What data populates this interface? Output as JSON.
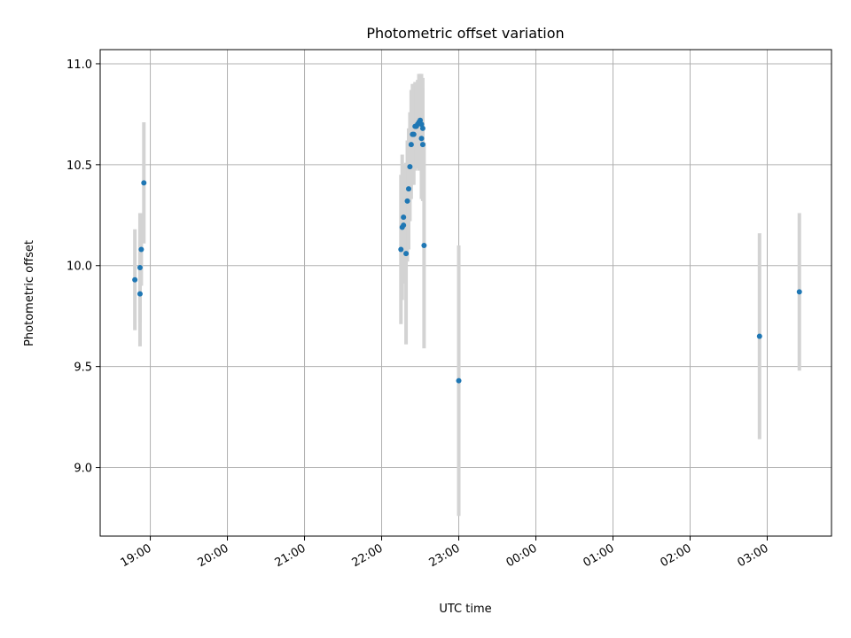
{
  "chart_data": {
    "type": "scatter",
    "title": "Photometric offset variation",
    "xlabel": "UTC time",
    "ylabel": "Photometric offset",
    "x_ticks": [
      "19:00",
      "20:00",
      "21:00",
      "22:00",
      "23:00",
      "00:00",
      "01:00",
      "02:00",
      "03:00"
    ],
    "y_ticks": [
      "9.0",
      "9.5",
      "10.0",
      "10.5",
      "11.0"
    ],
    "xlim": [
      "18:21",
      "03:50"
    ],
    "ylim": [
      8.66,
      11.07
    ],
    "grid": true,
    "point_color": "#1f77b4",
    "errorbar_color": "#d3d3d3",
    "points": [
      {
        "time": "18:48",
        "y": 9.93,
        "err": 0.25
      },
      {
        "time": "18:52",
        "y": 9.86,
        "err": 0.26
      },
      {
        "time": "18:52",
        "y": 9.99,
        "err": 0.27
      },
      {
        "time": "18:53",
        "y": 10.08,
        "err": 0.18
      },
      {
        "time": "18:55",
        "y": 10.41,
        "err": 0.3
      },
      {
        "time": "22:15",
        "y": 10.08,
        "err": 0.37
      },
      {
        "time": "22:16",
        "y": 10.19,
        "err": 0.36
      },
      {
        "time": "22:17",
        "y": 10.2,
        "err": 0.29
      },
      {
        "time": "22:17",
        "y": 10.24,
        "err": 0.26
      },
      {
        "time": "22:19",
        "y": 10.06,
        "err": 0.45
      },
      {
        "time": "22:20",
        "y": 10.32,
        "err": 0.3
      },
      {
        "time": "22:21",
        "y": 10.38,
        "err": 0.3
      },
      {
        "time": "22:22",
        "y": 10.49,
        "err": 0.27
      },
      {
        "time": "22:23",
        "y": 10.6,
        "err": 0.27
      },
      {
        "time": "22:24",
        "y": 10.65,
        "err": 0.25
      },
      {
        "time": "22:25",
        "y": 10.65,
        "err": 0.25
      },
      {
        "time": "22:26",
        "y": 10.69,
        "err": 0.22
      },
      {
        "time": "22:27",
        "y": 10.69,
        "err": 0.2
      },
      {
        "time": "22:28",
        "y": 10.7,
        "err": 0.22
      },
      {
        "time": "22:29",
        "y": 10.71,
        "err": 0.24
      },
      {
        "time": "22:30",
        "y": 10.72,
        "err": 0.23
      },
      {
        "time": "22:31",
        "y": 10.7,
        "err": 0.25
      },
      {
        "time": "22:31",
        "y": 10.63,
        "err": 0.3
      },
      {
        "time": "22:32",
        "y": 10.68,
        "err": 0.25
      },
      {
        "time": "22:32",
        "y": 10.6,
        "err": 0.28
      },
      {
        "time": "22:33",
        "y": 10.1,
        "err": 0.51
      },
      {
        "time": "23:00",
        "y": 9.43,
        "err": 0.67
      },
      {
        "time": "02:54",
        "y": 9.65,
        "err": 0.51
      },
      {
        "time": "03:25",
        "y": 9.87,
        "err": 0.39
      }
    ]
  }
}
